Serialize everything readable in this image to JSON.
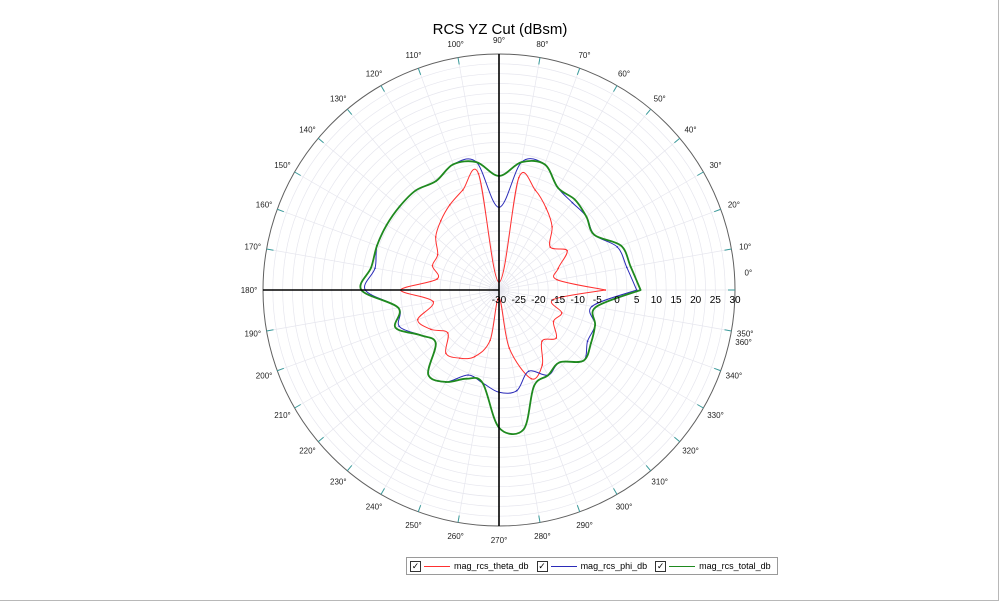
{
  "chart_data": {
    "type": "polar",
    "title": "RCS YZ Cut (dBsm)",
    "radial_axis": {
      "range": [
        -30,
        30
      ],
      "tick_labels": [
        "-30",
        "-25",
        "-20",
        "-15",
        "-10",
        "-5",
        "0",
        "5",
        "10",
        "15",
        "20",
        "25",
        "30"
      ]
    },
    "angular_tick_labels": [
      "0°",
      "10°",
      "20°",
      "30°",
      "40°",
      "50°",
      "60°",
      "70°",
      "80°",
      "90°",
      "100°",
      "110°",
      "120°",
      "130°",
      "140°",
      "150°",
      "160°",
      "170°",
      "180°",
      "190°",
      "200°",
      "210°",
      "220°",
      "230°",
      "240°",
      "250°",
      "260°",
      "270°",
      "280°",
      "290°",
      "300°",
      "310°",
      "320°",
      "330°",
      "340°",
      "350°",
      "360°"
    ],
    "grid": true,
    "legend_position": "bottom",
    "series": [
      {
        "name": "mag_rcs_theta_db",
        "color": "#ff3030",
        "angle": [
          0,
          10,
          20,
          30,
          40,
          50,
          60,
          70,
          80,
          90,
          100,
          110,
          120,
          130,
          140,
          150,
          160,
          170,
          180,
          190,
          200,
          210,
          220,
          230,
          240,
          250,
          260,
          270,
          280,
          290,
          300,
          310,
          320,
          330,
          340,
          350,
          360
        ],
        "values": [
          -3,
          -15,
          -14,
          -10,
          -13,
          -9,
          -6,
          -3,
          -1,
          -28,
          0,
          -3,
          -5,
          -7,
          -9,
          -12,
          -12,
          -14,
          -5,
          -13,
          -8,
          -10,
          -13,
          -9,
          -10,
          -12,
          -17,
          -28,
          -15,
          -6,
          -8,
          -13,
          -11,
          -14,
          -13,
          -16,
          -3
        ]
      },
      {
        "name": "mag_rcs_phi_db",
        "color": "#2b2bb8",
        "angle": [
          0,
          10,
          20,
          30,
          40,
          50,
          60,
          70,
          80,
          90,
          100,
          110,
          120,
          130,
          140,
          150,
          160,
          170,
          180,
          190,
          200,
          210,
          220,
          230,
          240,
          250,
          260,
          270,
          280,
          290,
          300,
          310,
          320,
          330,
          340,
          350,
          360
        ],
        "values": [
          5,
          3,
          2,
          -2,
          -1,
          -1,
          0,
          4,
          3,
          -9,
          3,
          4,
          2,
          3,
          3,
          3,
          3,
          2,
          4,
          -4,
          -3,
          -7,
          -9,
          -2,
          -3,
          -7,
          -6,
          -4,
          -4,
          -8,
          -5,
          -6,
          -2,
          -4,
          -4,
          -6,
          5
        ]
      },
      {
        "name": "mag_rcs_total_db",
        "color": "#1f8a1f",
        "angle": [
          0,
          10,
          20,
          30,
          40,
          50,
          60,
          70,
          80,
          90,
          100,
          110,
          120,
          130,
          140,
          150,
          160,
          170,
          180,
          190,
          200,
          210,
          220,
          230,
          240,
          250,
          260,
          270,
          280,
          290,
          300,
          310,
          320,
          330,
          340,
          350,
          360
        ],
        "values": [
          6,
          4,
          3,
          -2,
          -1,
          0,
          0,
          4,
          3,
          -1,
          3,
          4,
          2,
          3,
          3,
          3,
          3,
          3,
          5,
          -4,
          -2,
          -7,
          -9,
          -2,
          -3,
          -6,
          -6,
          5,
          6,
          -4,
          -5,
          -6,
          -2,
          -3,
          -4,
          -5,
          6
        ]
      }
    ]
  },
  "legend": {
    "check_mark": "✓"
  }
}
